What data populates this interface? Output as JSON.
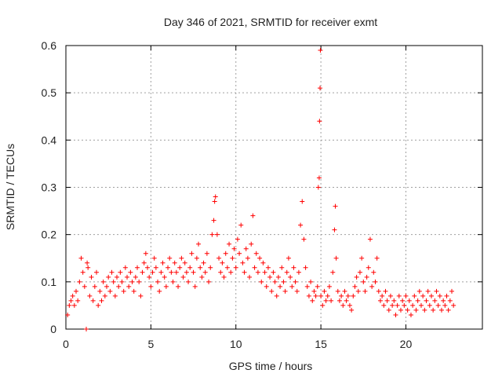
{
  "chart_data": {
    "type": "scatter",
    "title": "Day 346 of 2021, SRMTID for receiver exmt",
    "xlabel": "GPS time / hours",
    "ylabel": "SRMTID / TECUs",
    "xlim": [
      0,
      24.5
    ],
    "ylim": [
      0,
      0.6
    ],
    "xticks": [
      0,
      5,
      10,
      15,
      20
    ],
    "yticks": [
      0,
      0.1,
      0.2,
      0.3,
      0.4,
      0.5,
      0.6
    ],
    "grid": true,
    "marker": "+",
    "color": "#ff0000",
    "series": [
      {
        "name": "SRMTID",
        "points": [
          [
            0.1,
            0.03
          ],
          [
            0.2,
            0.05
          ],
          [
            0.3,
            0.06
          ],
          [
            0.4,
            0.07
          ],
          [
            0.5,
            0.05
          ],
          [
            0.6,
            0.08
          ],
          [
            0.7,
            0.06
          ],
          [
            0.8,
            0.1
          ],
          [
            0.9,
            0.15
          ],
          [
            1.0,
            0.12
          ],
          [
            1.1,
            0.09
          ],
          [
            1.2,
            0.0
          ],
          [
            1.25,
            0.14
          ],
          [
            1.3,
            0.13
          ],
          [
            1.4,
            0.07
          ],
          [
            1.5,
            0.11
          ],
          [
            1.6,
            0.06
          ],
          [
            1.7,
            0.09
          ],
          [
            1.8,
            0.12
          ],
          [
            1.9,
            0.05
          ],
          [
            2.0,
            0.08
          ],
          [
            2.1,
            0.06
          ],
          [
            2.2,
            0.1
          ],
          [
            2.3,
            0.07
          ],
          [
            2.4,
            0.09
          ],
          [
            2.5,
            0.11
          ],
          [
            2.6,
            0.08
          ],
          [
            2.7,
            0.12
          ],
          [
            2.8,
            0.1
          ],
          [
            2.9,
            0.07
          ],
          [
            3.0,
            0.11
          ],
          [
            3.1,
            0.09
          ],
          [
            3.2,
            0.12
          ],
          [
            3.3,
            0.1
          ],
          [
            3.4,
            0.08
          ],
          [
            3.5,
            0.13
          ],
          [
            3.6,
            0.11
          ],
          [
            3.7,
            0.09
          ],
          [
            3.8,
            0.12
          ],
          [
            3.9,
            0.1
          ],
          [
            4.0,
            0.08
          ],
          [
            4.1,
            0.11
          ],
          [
            4.2,
            0.13
          ],
          [
            4.3,
            0.1
          ],
          [
            4.4,
            0.07
          ],
          [
            4.5,
            0.12
          ],
          [
            4.6,
            0.14
          ],
          [
            4.7,
            0.16
          ],
          [
            4.8,
            0.13
          ],
          [
            4.9,
            0.11
          ],
          [
            5.0,
            0.09
          ],
          [
            5.1,
            0.12
          ],
          [
            5.2,
            0.15
          ],
          [
            5.3,
            0.13
          ],
          [
            5.4,
            0.1
          ],
          [
            5.5,
            0.08
          ],
          [
            5.6,
            0.12
          ],
          [
            5.7,
            0.14
          ],
          [
            5.8,
            0.11
          ],
          [
            5.9,
            0.09
          ],
          [
            6.0,
            0.13
          ],
          [
            6.1,
            0.15
          ],
          [
            6.2,
            0.12
          ],
          [
            6.3,
            0.1
          ],
          [
            6.4,
            0.14
          ],
          [
            6.5,
            0.12
          ],
          [
            6.6,
            0.09
          ],
          [
            6.7,
            0.13
          ],
          [
            6.8,
            0.15
          ],
          [
            6.9,
            0.11
          ],
          [
            7.0,
            0.14
          ],
          [
            7.1,
            0.12
          ],
          [
            7.2,
            0.1
          ],
          [
            7.3,
            0.13
          ],
          [
            7.4,
            0.16
          ],
          [
            7.5,
            0.12
          ],
          [
            7.6,
            0.09
          ],
          [
            7.7,
            0.15
          ],
          [
            7.8,
            0.18
          ],
          [
            7.9,
            0.13
          ],
          [
            8.0,
            0.11
          ],
          [
            8.1,
            0.14
          ],
          [
            8.2,
            0.12
          ],
          [
            8.3,
            0.16
          ],
          [
            8.4,
            0.1
          ],
          [
            8.5,
            0.13
          ],
          [
            8.6,
            0.2
          ],
          [
            8.7,
            0.23
          ],
          [
            8.75,
            0.27
          ],
          [
            8.8,
            0.28
          ],
          [
            8.9,
            0.2
          ],
          [
            9.0,
            0.15
          ],
          [
            9.1,
            0.12
          ],
          [
            9.2,
            0.14
          ],
          [
            9.3,
            0.11
          ],
          [
            9.4,
            0.16
          ],
          [
            9.5,
            0.13
          ],
          [
            9.6,
            0.18
          ],
          [
            9.7,
            0.12
          ],
          [
            9.8,
            0.15
          ],
          [
            9.9,
            0.17
          ],
          [
            10.0,
            0.13
          ],
          [
            10.1,
            0.19
          ],
          [
            10.2,
            0.16
          ],
          [
            10.3,
            0.22
          ],
          [
            10.4,
            0.14
          ],
          [
            10.5,
            0.12
          ],
          [
            10.6,
            0.17
          ],
          [
            10.7,
            0.15
          ],
          [
            10.8,
            0.11
          ],
          [
            10.9,
            0.18
          ],
          [
            11.0,
            0.24
          ],
          [
            11.1,
            0.13
          ],
          [
            11.2,
            0.16
          ],
          [
            11.3,
            0.12
          ],
          [
            11.4,
            0.15
          ],
          [
            11.5,
            0.1
          ],
          [
            11.6,
            0.14
          ],
          [
            11.7,
            0.12
          ],
          [
            11.8,
            0.09
          ],
          [
            11.9,
            0.13
          ],
          [
            12.0,
            0.11
          ],
          [
            12.1,
            0.08
          ],
          [
            12.2,
            0.12
          ],
          [
            12.3,
            0.1
          ],
          [
            12.4,
            0.07
          ],
          [
            12.5,
            0.11
          ],
          [
            12.6,
            0.09
          ],
          [
            12.7,
            0.13
          ],
          [
            12.8,
            0.1
          ],
          [
            12.9,
            0.08
          ],
          [
            13.0,
            0.12
          ],
          [
            13.1,
            0.15
          ],
          [
            13.2,
            0.11
          ],
          [
            13.3,
            0.09
          ],
          [
            13.4,
            0.13
          ],
          [
            13.5,
            0.1
          ],
          [
            13.6,
            0.08
          ],
          [
            13.7,
            0.12
          ],
          [
            13.8,
            0.22
          ],
          [
            13.9,
            0.27
          ],
          [
            14.0,
            0.19
          ],
          [
            14.1,
            0.13
          ],
          [
            14.2,
            0.09
          ],
          [
            14.3,
            0.07
          ],
          [
            14.4,
            0.1
          ],
          [
            14.5,
            0.06
          ],
          [
            14.6,
            0.08
          ],
          [
            14.7,
            0.07
          ],
          [
            14.8,
            0.09
          ],
          [
            14.85,
            0.3
          ],
          [
            14.9,
            0.32
          ],
          [
            14.92,
            0.44
          ],
          [
            14.95,
            0.51
          ],
          [
            14.97,
            0.59
          ],
          [
            15.0,
            0.07
          ],
          [
            15.1,
            0.05
          ],
          [
            15.2,
            0.08
          ],
          [
            15.3,
            0.06
          ],
          [
            15.4,
            0.07
          ],
          [
            15.5,
            0.09
          ],
          [
            15.6,
            0.06
          ],
          [
            15.7,
            0.12
          ],
          [
            15.8,
            0.21
          ],
          [
            15.85,
            0.26
          ],
          [
            15.9,
            0.15
          ],
          [
            16.0,
            0.08
          ],
          [
            16.1,
            0.06
          ],
          [
            16.2,
            0.07
          ],
          [
            16.3,
            0.05
          ],
          [
            16.4,
            0.08
          ],
          [
            16.5,
            0.06
          ],
          [
            16.6,
            0.07
          ],
          [
            16.7,
            0.05
          ],
          [
            16.8,
            0.04
          ],
          [
            16.9,
            0.07
          ],
          [
            17.0,
            0.09
          ],
          [
            17.1,
            0.11
          ],
          [
            17.2,
            0.08
          ],
          [
            17.3,
            0.12
          ],
          [
            17.4,
            0.15
          ],
          [
            17.5,
            0.1
          ],
          [
            17.6,
            0.08
          ],
          [
            17.7,
            0.11
          ],
          [
            17.8,
            0.13
          ],
          [
            17.9,
            0.19
          ],
          [
            18.0,
            0.09
          ],
          [
            18.1,
            0.12
          ],
          [
            18.2,
            0.1
          ],
          [
            18.3,
            0.15
          ],
          [
            18.4,
            0.08
          ],
          [
            18.5,
            0.06
          ],
          [
            18.6,
            0.07
          ],
          [
            18.7,
            0.05
          ],
          [
            18.8,
            0.08
          ],
          [
            18.9,
            0.06
          ],
          [
            19.0,
            0.04
          ],
          [
            19.1,
            0.07
          ],
          [
            19.2,
            0.05
          ],
          [
            19.3,
            0.06
          ],
          [
            19.4,
            0.03
          ],
          [
            19.5,
            0.05
          ],
          [
            19.6,
            0.07
          ],
          [
            19.7,
            0.04
          ],
          [
            19.8,
            0.06
          ],
          [
            19.9,
            0.05
          ],
          [
            20.0,
            0.07
          ],
          [
            20.1,
            0.04
          ],
          [
            20.2,
            0.06
          ],
          [
            20.3,
            0.03
          ],
          [
            20.4,
            0.05
          ],
          [
            20.5,
            0.07
          ],
          [
            20.6,
            0.04
          ],
          [
            20.7,
            0.06
          ],
          [
            20.8,
            0.08
          ],
          [
            20.9,
            0.05
          ],
          [
            21.0,
            0.07
          ],
          [
            21.1,
            0.04
          ],
          [
            21.2,
            0.06
          ],
          [
            21.3,
            0.08
          ],
          [
            21.4,
            0.05
          ],
          [
            21.5,
            0.07
          ],
          [
            21.6,
            0.04
          ],
          [
            21.7,
            0.06
          ],
          [
            21.8,
            0.08
          ],
          [
            21.9,
            0.05
          ],
          [
            22.0,
            0.07
          ],
          [
            22.1,
            0.04
          ],
          [
            22.2,
            0.06
          ],
          [
            22.3,
            0.05
          ],
          [
            22.4,
            0.07
          ],
          [
            22.5,
            0.04
          ],
          [
            22.6,
            0.06
          ],
          [
            22.7,
            0.08
          ],
          [
            22.8,
            0.05
          ]
        ]
      }
    ]
  }
}
